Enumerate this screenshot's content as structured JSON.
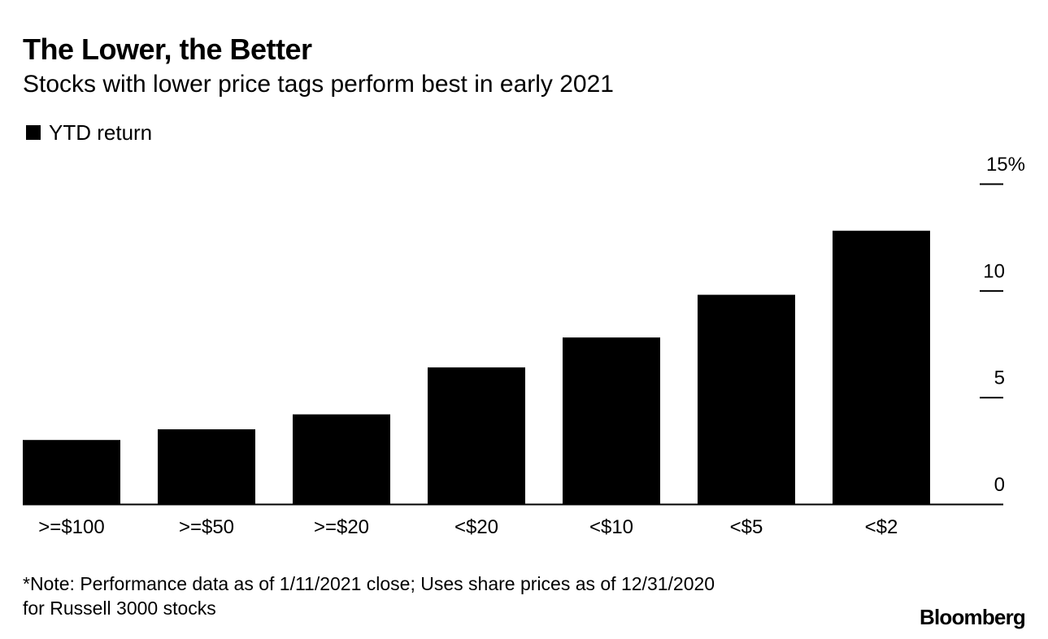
{
  "chart_data": {
    "type": "bar",
    "title": "The Lower, the Better",
    "subtitle": "Stocks with lower price tags perform best in early 2021",
    "legend": [
      "YTD return"
    ],
    "legend_placement": "top-left",
    "categories": [
      ">=$100",
      ">=$50",
      ">=$20",
      "<$20",
      "<$10",
      "<$5",
      "<$2"
    ],
    "series": [
      {
        "name": "YTD return",
        "values": [
          3.0,
          3.5,
          4.2,
          6.4,
          7.8,
          9.8,
          12.8
        ]
      }
    ],
    "ylim": [
      0,
      15
    ],
    "yticks": [
      0,
      5,
      10,
      15
    ],
    "ytick_labels": [
      "0",
      "5",
      "10",
      "15%"
    ],
    "y_axis_side": "right",
    "xlabel": "",
    "ylabel": "",
    "grid": false,
    "colors": {
      "bar": "#000000",
      "axis": "#000000",
      "background": "#ffffff"
    }
  },
  "footer": {
    "note_line1": "*Note: Performance data as of 1/11/2021 close; Uses share prices as of 12/31/2020",
    "note_line2": "for Russell 3000 stocks",
    "source": "Bloomberg"
  }
}
